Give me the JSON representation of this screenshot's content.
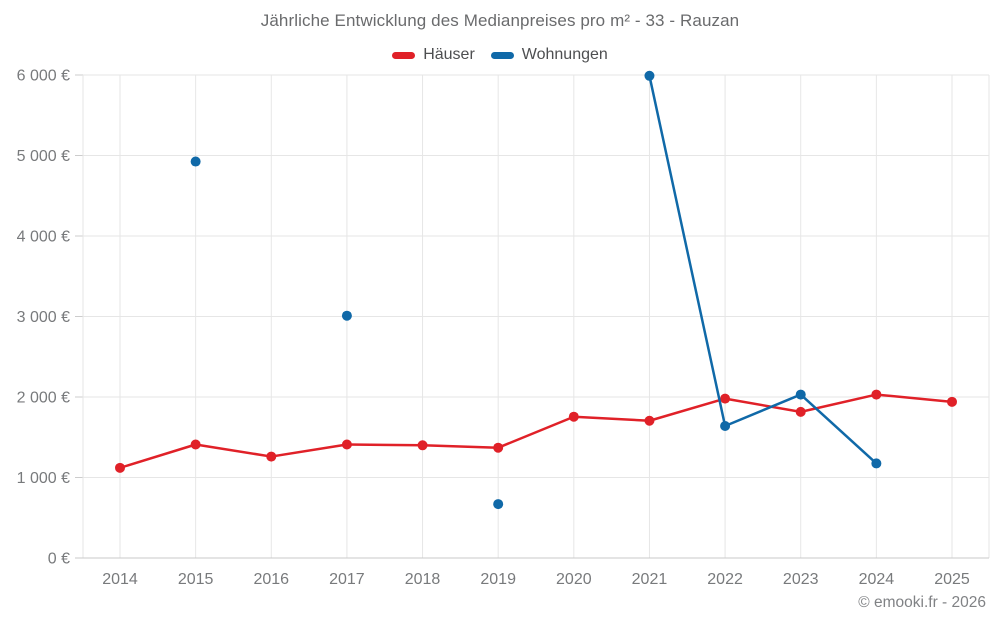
{
  "title": "Jährliche Entwicklung des Medianpreises pro m² - 33 - Rauzan",
  "legend": [
    {
      "label": "Häuser",
      "color": "#e02128"
    },
    {
      "label": "Wohnungen",
      "color": "#1069a8"
    }
  ],
  "footer": {
    "credit": "© emooki.fr - 2026"
  },
  "chart_data": {
    "type": "line",
    "title": "Jährliche Entwicklung des Medianpreises pro m² - 33 - Rauzan",
    "categories": [
      "2014",
      "2015",
      "2016",
      "2017",
      "2018",
      "2019",
      "2020",
      "2021",
      "2022",
      "2023",
      "2024",
      "2025"
    ],
    "series": [
      {
        "name": "Häuser",
        "color": "#e02128",
        "values": [
          1120,
          1410,
          1260,
          1410,
          1400,
          1370,
          1755,
          1705,
          1980,
          1815,
          2030,
          1940
        ]
      },
      {
        "name": "Wohnungen",
        "color": "#1069a8",
        "values": [
          null,
          4925,
          null,
          3010,
          null,
          670,
          null,
          5990,
          1640,
          2030,
          1175,
          null
        ]
      }
    ],
    "xlabel": "",
    "ylabel": "",
    "ylim": [
      0,
      6000
    ],
    "ytick_step": 1000,
    "ytick_labels": [
      "0 €",
      "1 000 €",
      "2 000 €",
      "3 000 €",
      "4 000 €",
      "5 000 €",
      "6 000 €"
    ],
    "grid": true,
    "legend_position": "top",
    "marker_radius": 5
  }
}
